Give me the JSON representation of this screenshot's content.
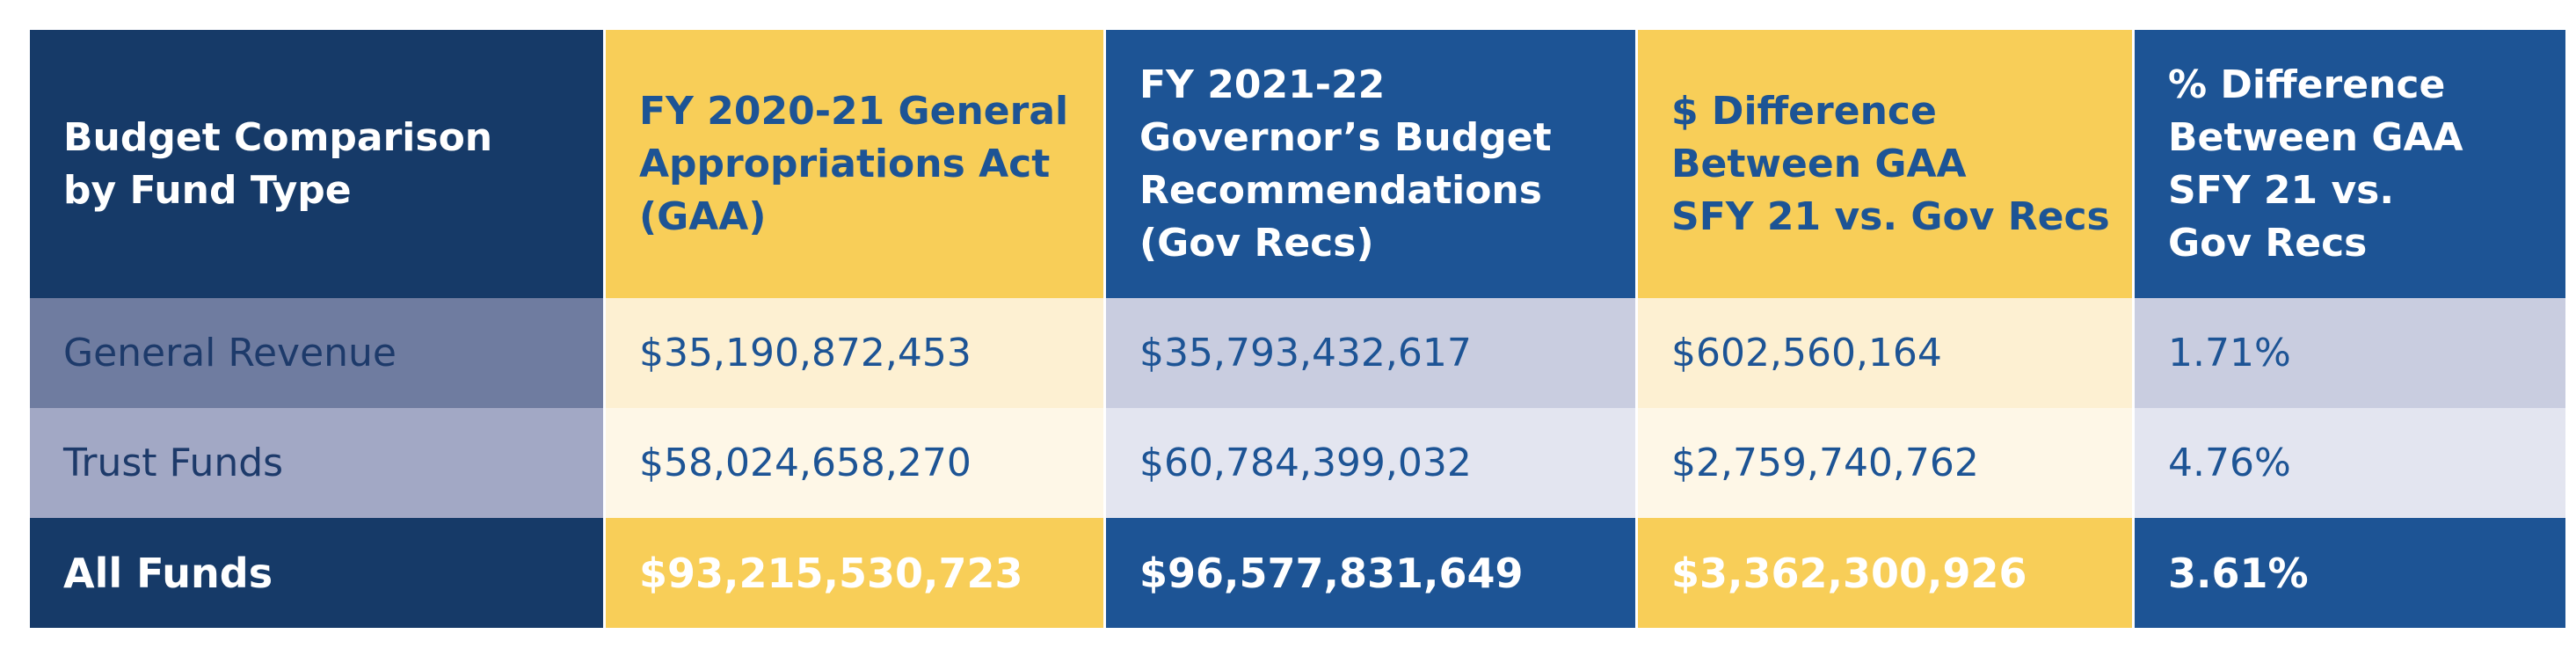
{
  "headers": [
    "Budget Comparison\nby Fund Type",
    "FY 2020-21 General\nAppropriations Act\n(GAA)",
    "FY 2021-22\nGovernor’s Budget\nRecommendations\n(Gov Recs)",
    "$ Difference\nBetween GAA\nSFY 21 vs. Gov Recs",
    "% Difference\nBetween GAA\nSFY 21 vs.\nGov Recs"
  ],
  "rows": [
    [
      "General Revenue",
      "$35,190,872,453",
      "$35,793,432,617",
      "$602,560,164",
      "1.71%"
    ],
    [
      "Trust Funds",
      "$58,024,658,270",
      "$60,784,399,032",
      "$2,759,740,762",
      "4.76%"
    ],
    [
      "All Funds",
      "$93,215,530,723",
      "$96,577,831,649",
      "$3,362,300,926",
      "3.61%"
    ]
  ],
  "colors": {
    "navy": "#163a68",
    "blue": "#1d5495",
    "gold": "#f8ce58"
  }
}
